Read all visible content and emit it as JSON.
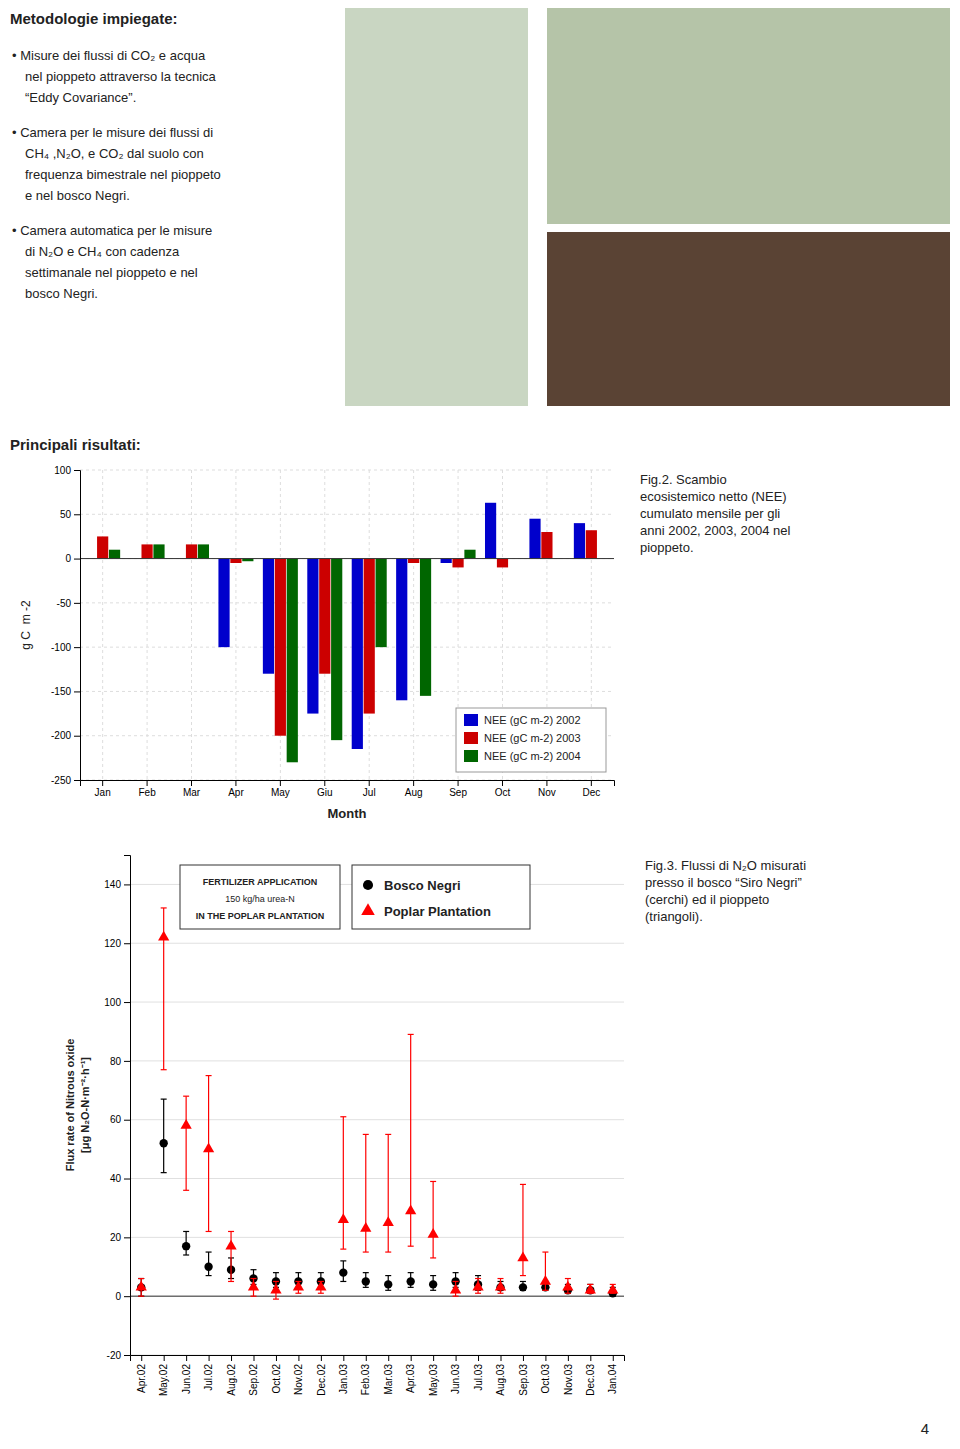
{
  "chart_data": [
    {
      "type": "bar",
      "categories": [
        "Jan",
        "Feb",
        "Mar",
        "Apr",
        "May",
        "Giu",
        "Jul",
        "Aug",
        "Sep",
        "Oct",
        "Nov",
        "Dec"
      ],
      "series": [
        {
          "name": "NEE (gC m-2) 2002",
          "color": "#0000cc",
          "values": [
            0,
            0,
            0,
            -100,
            -130,
            -175,
            -215,
            -160,
            -5,
            63,
            45,
            40
          ]
        },
        {
          "name": "NEE (gC m-2) 2003",
          "color": "#cc0000",
          "values": [
            25,
            16,
            16,
            -5,
            -200,
            -130,
            -175,
            -5,
            -10,
            -10,
            30,
            32
          ]
        },
        {
          "name": "NEE (gC m-2) 2004",
          "color": "#006600",
          "values": [
            10,
            16,
            16,
            -3,
            -230,
            -205,
            -100,
            -155,
            10,
            null,
            null,
            null
          ]
        }
      ],
      "xlabel": "Month",
      "ylabel": "g C  m -2",
      "ylim": [
        -250,
        100
      ],
      "yticks": [
        -250,
        -200,
        -150,
        -100,
        -50,
        0,
        50,
        100
      ],
      "grid": true,
      "legend": "lower right",
      "annotations": [
        "Metodologie impiegate:",
        "• Misure dei flussi di CO₂ e acqua\nnel pioppeto attraverso la tecnica\n“Eddy Covariance”.",
        "• Camera per le misure dei flussi di\nCH₄ ,N₂O, e CO₂ dal suolo con\nfrequenza bimestrale nel pioppeto\ne nel bosco Negri.",
        "• Camera automatica per le misure\ndi N₂O e CH₄ con cadenza\nsettimanale nel pioppeto e nel\nbosco Negri.",
        "Principali risultati:",
        "Fig.2. Scambio\necosistemico netto (NEE)\ncumulato mensile per gli\nanni 2002, 2003, 2004 nel\npioppeto."
      ]
    },
    {
      "type": "scatter",
      "categories": [
        "Apr.02",
        "May.02",
        "Jun.02",
        "Jul.02",
        "Aug.02",
        "Sep.02",
        "Oct.02",
        "Nov.02",
        "Dec.02",
        "Jan.03",
        "Feb.03",
        "Mar.03",
        "Apr.03",
        "May.03",
        "Jun.03",
        "Jul.03",
        "Aug.03",
        "Sep.03",
        "Oct.03",
        "Nov.03",
        "Dec.03",
        "Jan.04"
      ],
      "series": [
        {
          "name": "Bosco Negri",
          "color": "black",
          "marker": "circle",
          "values": [
            3,
            52,
            17,
            10,
            9,
            6,
            5,
            5,
            5,
            8,
            5,
            4,
            5,
            4,
            5,
            4,
            3,
            3,
            3,
            2,
            2,
            1
          ],
          "error_low": [
            3,
            10,
            3,
            3,
            3,
            2,
            2,
            2,
            2,
            3,
            2,
            2,
            2,
            2,
            2,
            2,
            1,
            1,
            1,
            1,
            1,
            1
          ],
          "error_high": [
            3,
            15,
            5,
            5,
            4,
            3,
            3,
            3,
            3,
            4,
            3,
            3,
            3,
            3,
            3,
            3,
            2,
            2,
            2,
            2,
            2,
            2
          ]
        },
        {
          "name": "Poplar Plantation",
          "color": "red",
          "marker": "triangle",
          "values": [
            3,
            122,
            58,
            50,
            17,
            3,
            2,
            3,
            3,
            26,
            23,
            25,
            29,
            21,
            2,
            3,
            3,
            13,
            5,
            3,
            2,
            2
          ],
          "error_low": [
            3,
            45,
            22,
            28,
            12,
            3,
            3,
            2,
            2,
            10,
            8,
            10,
            12,
            8,
            2,
            2,
            2,
            6,
            3,
            2,
            1,
            1
          ],
          "error_high": [
            3,
            10,
            10,
            25,
            5,
            3,
            3,
            2,
            2,
            35,
            32,
            30,
            60,
            18,
            3,
            3,
            3,
            25,
            10,
            3,
            2,
            2
          ]
        }
      ],
      "ylabel": "Flux rate of Nitrous oxide\n[μg N₂O-N·m⁻²·h⁻¹]",
      "ylim": [
        -20,
        150
      ],
      "yticks": [
        -20,
        0,
        20,
        40,
        60,
        80,
        100,
        120,
        140
      ],
      "grid": true,
      "legend": "top",
      "annotations": [
        "FERTILIZER APPLICATION\n150 kg/ha urea-N\nIN THE POPLAR PLANTATION",
        "Fig.3. Flussi di N₂O misurati\npresso il bosco “Siro Negri”\n(cerchi) ed il pioppeto\n(triangoli).",
        "4"
      ]
    }
  ]
}
